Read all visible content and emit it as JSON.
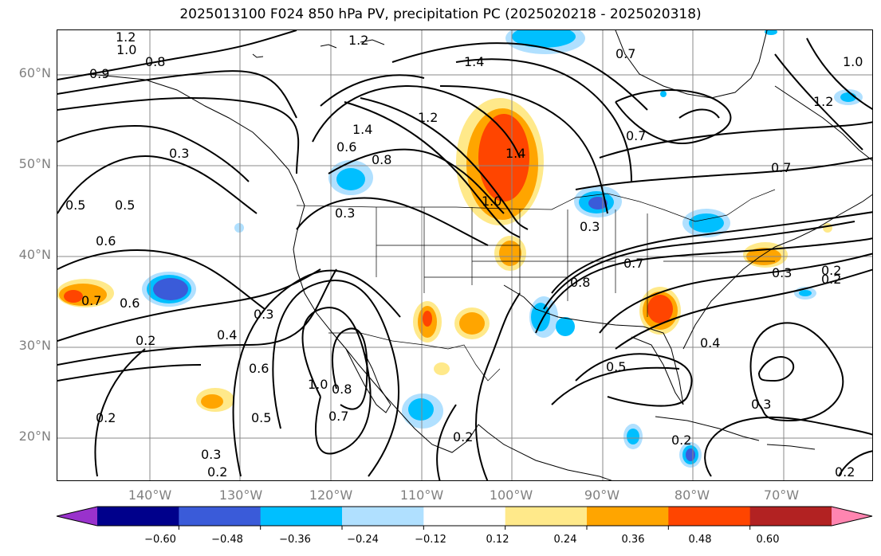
{
  "title": "2025013100 F024 850 hPa PV, precipitation PC (2025020218 - 2025020318)",
  "lat_labels": [
    "60°N",
    "50°N",
    "40°N",
    "30°N",
    "20°N"
  ],
  "lon_labels": [
    "140°W",
    "130°W",
    "120°W",
    "110°W",
    "100°W",
    "90°W",
    "80°W",
    "70°W"
  ],
  "colorbar": {
    "ticks": [
      "−0.60",
      "−0.48",
      "−0.36",
      "−0.24",
      "−0.12",
      "0.12",
      "0.24",
      "0.36",
      "0.48",
      "0.60"
    ],
    "colors": [
      "#9932cc",
      "#00008b",
      "#3a5bd9",
      "#00bfff",
      "#b0e0ff",
      "#ffffff",
      "#ffe98a",
      "#ffa500",
      "#ff4500",
      "#b22222",
      "#ff85b0"
    ]
  },
  "contour_labels": [
    "1.2",
    "1.0",
    "0.8",
    "0.9",
    "1.2",
    "1.4",
    "0.7",
    "1.0",
    "1.2",
    "0.3",
    "1.4",
    "0.6",
    "0.8",
    "1.2",
    "1.0",
    "1.4",
    "0.7",
    "0.5",
    "0.5",
    "0.6",
    "0.3",
    "0.7",
    "0.3",
    "0.7",
    "0.6",
    "0.3",
    "0.2",
    "0.4",
    "0.8",
    "0.3",
    "0.2",
    "0.7",
    "0.6",
    "0.4",
    "0.5",
    "0.2",
    "0.5",
    "1.0",
    "0.8",
    "0.7",
    "0.2",
    "0.3",
    "0.2",
    "0.2",
    "0.2",
    "0.3",
    "0.2"
  ]
}
